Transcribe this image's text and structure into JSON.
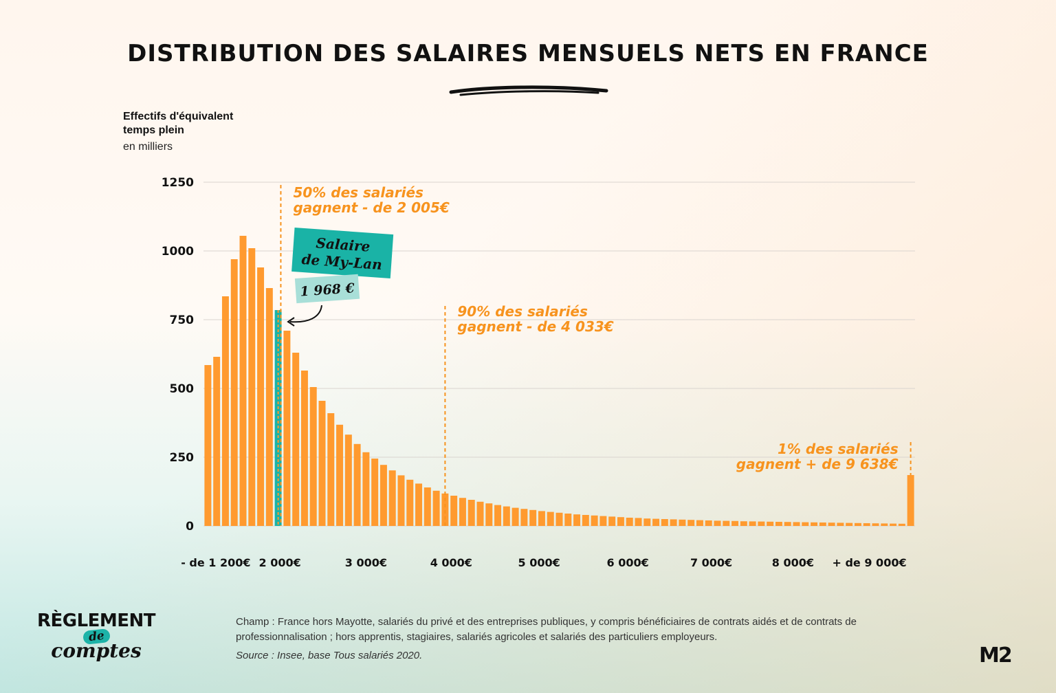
{
  "header": {
    "title": "DISTRIBUTION DES SALAIRES MENSUELS NETS EN FRANCE"
  },
  "chart_data": {
    "type": "bar",
    "ylabel_line1": "Effectifs d'équivalent",
    "ylabel_line2": "temps plein",
    "yunit": "en milliers",
    "ylim": [
      0,
      1250
    ],
    "yticks": [
      0,
      250,
      500,
      750,
      1000,
      1250
    ],
    "grid": true,
    "x_tick_labels": [
      "- de 1 200€",
      "2 000€",
      "3 000€",
      "4 000€",
      "5 000€",
      "6 000€",
      "7 000€",
      "8 000€",
      "+  de 9 000€"
    ],
    "x_tick_bar_index": [
      0.9,
      8.2,
      18.0,
      27.7,
      37.7,
      47.8,
      57.3,
      66.6,
      75.3
    ],
    "highlight_index": 8,
    "values": [
      585,
      615,
      835,
      970,
      1055,
      1010,
      940,
      865,
      785,
      710,
      630,
      565,
      505,
      455,
      410,
      368,
      332,
      298,
      268,
      245,
      222,
      202,
      184,
      168,
      154,
      140,
      128,
      118,
      110,
      102,
      95,
      88,
      82,
      76,
      71,
      66,
      62,
      58,
      54,
      51,
      48,
      45,
      42,
      40,
      38,
      36,
      34,
      32,
      30,
      29,
      27,
      26,
      25,
      24,
      23,
      22,
      21,
      20,
      19,
      18.5,
      18,
      17,
      16.5,
      16,
      15.5,
      15,
      14.5,
      14,
      13.5,
      13,
      12.5,
      12,
      11.5,
      11,
      10.5,
      10,
      9.5,
      9,
      8.5,
      8,
      185
    ],
    "colors": {
      "bar": "#ff9a2f",
      "highlight": "#1ab3a6",
      "annotation": "#f7931e"
    },
    "annotations": [
      {
        "line1": "50% des salariés",
        "line2": "gagnent - de 2 005€",
        "bar_index": 8.3
      },
      {
        "line1": "90% des salariés",
        "line2": "gagnent - de 4 033€",
        "bar_index": 27.0
      },
      {
        "line1": "1% des salariés",
        "line2": "gagnent + de 9 638€",
        "bar_index": 80.0
      }
    ],
    "callout": {
      "label_line1": "Salaire",
      "label_line2": "de My-Lan",
      "value": "1 968 €"
    }
  },
  "footer": {
    "note": "Champ : France hors Mayotte, salariés du privé et des entreprises publiques, y compris bénéficiaires de contrats aidés et de contrats de professionnalisation ; hors apprentis, stagiaires, salariés agricoles et salariés des particuliers employeurs.",
    "source": "Source : Insee, base Tous salariés 2020.",
    "logo_line1": "RÈGLEMENT",
    "logo_line2": "de",
    "logo_line3": "comptes",
    "brand": "M2"
  }
}
